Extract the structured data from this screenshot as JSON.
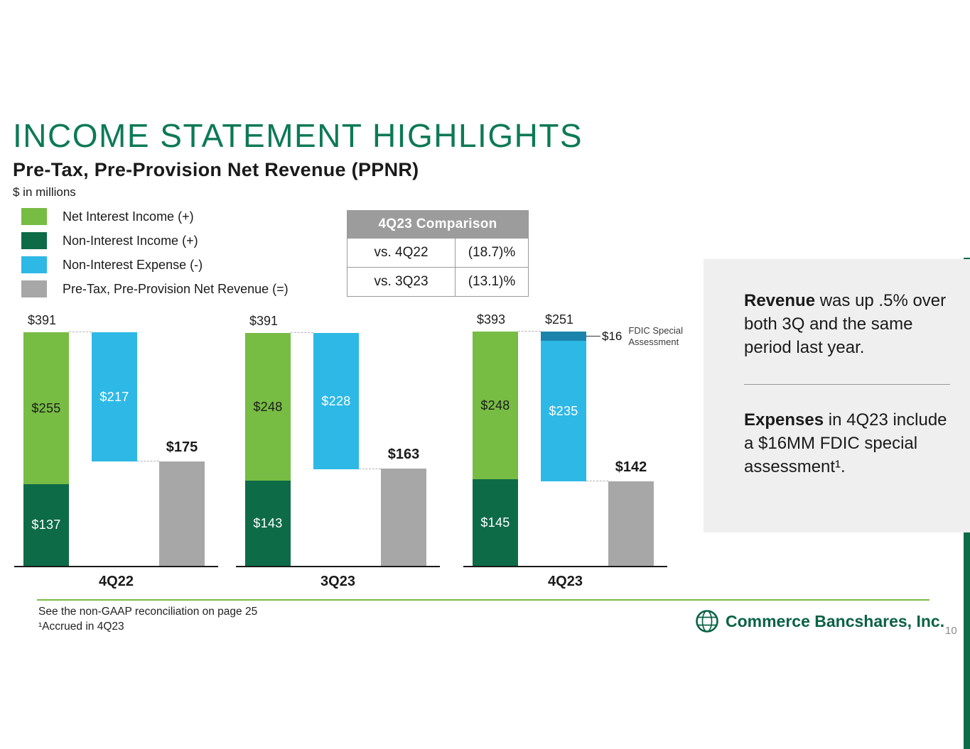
{
  "slide": {
    "title": "INCOME STATEMENT HIGHLIGHTS",
    "subtitle": "Pre-Tax, Pre-Provision Net Revenue (PPNR)",
    "units_note": "$ in millions",
    "page_number": "10",
    "footnotes": [
      "See the non-GAAP reconciliation on page 25",
      "¹Accrued in 4Q23"
    ],
    "logo_text": "Commerce Bancshares, Inc."
  },
  "legend": {
    "items": [
      {
        "label": "Net Interest Income (+)",
        "color": "#77bc43"
      },
      {
        "label": "Non-Interest Income (+)",
        "color": "#0e6b48"
      },
      {
        "label": "Non-Interest Expense (-)",
        "color": "#2eb8e6"
      },
      {
        "label": "Pre-Tax, Pre-Provision Net Revenue (=)",
        "color": "#a7a7a7"
      }
    ]
  },
  "comparison_table": {
    "header": "4Q23 Comparison",
    "rows": [
      {
        "label": "vs. 4Q22",
        "value": "(18.7)%"
      },
      {
        "label": "vs. 3Q23",
        "value": "(13.1)%"
      }
    ]
  },
  "callout": {
    "p1_lead": "Revenue",
    "p1_rest": " was up .5% over both 3Q and the same period last year.",
    "p2_lead": "Expenses",
    "p2_rest": " in 4Q23 include a $16MM FDIC special assessment¹."
  },
  "chart_data": {
    "type": "bar",
    "subtype": "stacked-waterfall",
    "title": "Pre-Tax, Pre-Provision Net Revenue (PPNR)",
    "unit": "$ in millions",
    "categories": [
      "4Q22",
      "3Q23",
      "4Q23"
    ],
    "legend_position": "top-left",
    "colors": {
      "net_interest_income": "#77bc43",
      "non_interest_income": "#0e6b48",
      "non_interest_expense": "#2eb8e6",
      "fdic_assessment": "#1b84ad",
      "ppnr": "#a7a7a7"
    },
    "groups": [
      {
        "category": "4Q22",
        "revenue_total": 391,
        "revenue_total_label": "$391",
        "net_interest_income": 255,
        "net_interest_income_label": "$255",
        "non_interest_income": 137,
        "non_interest_income_label": "$137",
        "non_interest_expense": 217,
        "non_interest_expense_label": "$217",
        "ppnr": 175,
        "ppnr_label": "$175"
      },
      {
        "category": "3Q23",
        "revenue_total": 391,
        "revenue_total_label": "$391",
        "net_interest_income": 248,
        "net_interest_income_label": "$248",
        "non_interest_income": 143,
        "non_interest_income_label": "$143",
        "non_interest_expense": 228,
        "non_interest_expense_label": "$228",
        "ppnr": 163,
        "ppnr_label": "$163"
      },
      {
        "category": "4Q23",
        "revenue_total": 393,
        "revenue_total_label": "$393",
        "net_interest_income": 248,
        "net_interest_income_label": "$248",
        "non_interest_income": 145,
        "non_interest_income_label": "$145",
        "non_interest_expense": 235,
        "non_interest_expense_label": "$235",
        "expense_total": 251,
        "expense_total_label": "$251",
        "fdic_assessment": 16,
        "fdic_assessment_label": "$16",
        "fdic_annotation": "FDIC Special Assessment",
        "ppnr": 142,
        "ppnr_label": "$142"
      }
    ]
  }
}
